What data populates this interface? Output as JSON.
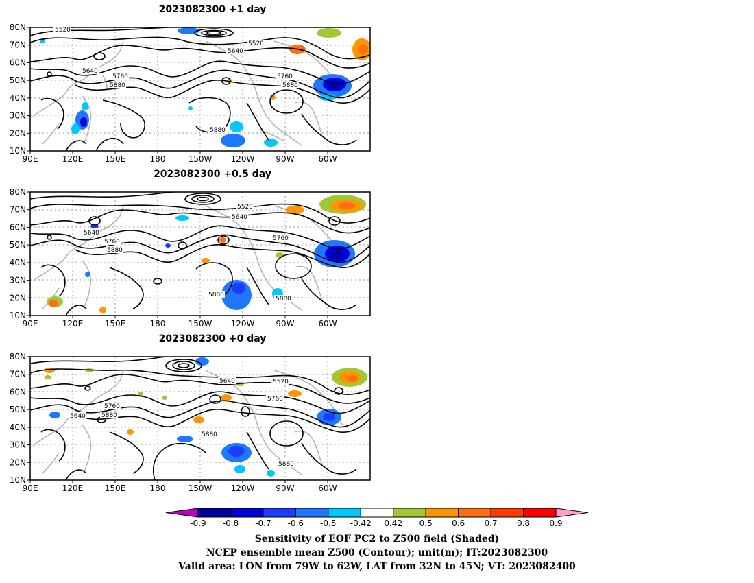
{
  "panels": [
    {
      "title": "2023082300  +1  day",
      "labels": [
        "5520",
        "5520",
        "5640",
        "5640",
        "5760",
        "5760",
        "5880",
        "5880",
        "5880"
      ]
    },
    {
      "title": "2023082300  +0.5  day",
      "labels": [
        "5520",
        "5640",
        "5640",
        "5760",
        "5760",
        "5880",
        "5880",
        "5880"
      ]
    },
    {
      "title": "2023082300  +0  day",
      "labels": [
        "5640",
        "5520",
        "5640",
        "5760",
        "5760",
        "5880",
        "5880",
        "5880"
      ]
    }
  ],
  "lat_ticks": [
    "80N",
    "70N",
    "60N",
    "50N",
    "40N",
    "30N",
    "20N",
    "10N"
  ],
  "lon_ticks": [
    "90E",
    "120E",
    "150E",
    "180",
    "150W",
    "120W",
    "90W",
    "60W"
  ],
  "colorbar": {
    "ticks": [
      "-0.9",
      "-0.8",
      "-0.7",
      "-0.6",
      "-0.5",
      "-0.42",
      "0.42",
      "0.5",
      "0.6",
      "0.7",
      "0.8",
      "0.9"
    ],
    "colors": [
      "#c000c0",
      "#0000a0",
      "#0000dc",
      "#1e3cff",
      "#1e78ff",
      "#00c8ff",
      "#ffffff",
      "#a0c832",
      "#ff9600",
      "#ff6e14",
      "#ff3c00",
      "#ff0000",
      "#ffa0c8"
    ]
  },
  "caption": {
    "line1": "Sensitivity of EOF PC2 to Z500 field (Shaded)",
    "line2": "NCEP ensemble mean Z500 (Contour); unit(m); IT:2023082300",
    "line3": "Valid area: LON from 79W to 62W, LAT from 32N to 45N; VT: 2023082400"
  }
}
